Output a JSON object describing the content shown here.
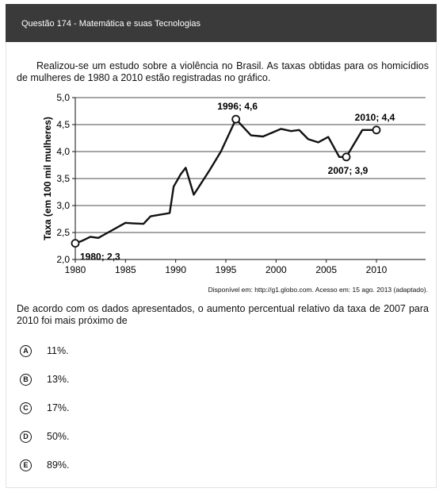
{
  "header": {
    "title": "Questão 174 - Matemática e suas Tecnologias"
  },
  "intro_text": "Realizou-se um estudo sobre a violência no Brasil. As taxas obtidas para os homicídios de mulheres de 1980 a 2010 estão registradas no gráfico.",
  "chart_data": {
    "type": "line",
    "ylabel": "Taxa (em 100 mil mulheres)",
    "xlabel": "",
    "xlim": [
      1980,
      2010
    ],
    "ylim": [
      2.0,
      5.0
    ],
    "x_ticks": [
      "1980",
      "1985",
      "1990",
      "1995",
      "2000",
      "2005",
      "2010"
    ],
    "y_ticks": [
      "2,0",
      "2,5",
      "3,0",
      "3,5",
      "4,0",
      "4,5",
      "5,0"
    ],
    "grid": "horizontal",
    "series": [
      {
        "x": [
          1980,
          1980.6,
          1981.5,
          1982.3,
          1985,
          1985.7,
          1986.8,
          1987.5,
          1989.4,
          1989.8,
          1990.5,
          1991,
          1991.8,
          1993.4,
          1994.5,
          1996,
          1997.5,
          1998.7,
          2000.5,
          2001.5,
          2002.3,
          2003.2,
          2004.2,
          2005.2,
          2006.3,
          2007,
          2008.6,
          2009.3,
          2010
        ],
        "y": [
          2.3,
          2.34,
          2.42,
          2.4,
          2.68,
          2.67,
          2.66,
          2.8,
          2.86,
          3.35,
          3.58,
          3.7,
          3.2,
          3.66,
          4.0,
          4.6,
          4.3,
          4.28,
          4.42,
          4.38,
          4.4,
          4.23,
          4.17,
          4.27,
          3.9,
          3.9,
          4.4,
          4.4,
          4.4
        ]
      }
    ],
    "annotations": [
      {
        "x": 1980,
        "y": 2.3,
        "label": "1980; 2,3"
      },
      {
        "x": 1996,
        "y": 4.6,
        "label": "1996; 4,6"
      },
      {
        "x": 2007,
        "y": 3.9,
        "label": "2007; 3,9"
      },
      {
        "x": 2010,
        "y": 4.4,
        "label": "2010; 4,4"
      }
    ]
  },
  "source_text": "Disponível em: http://g1.globo.com. Acesso em: 15 ago. 2013 (adaptado).",
  "question_text": "De acordo com os dados apresentados, o aumento percentual relativo da taxa de 2007 para 2010 foi mais próximo de",
  "options": [
    {
      "letter": "A",
      "text": "11%."
    },
    {
      "letter": "B",
      "text": "13%."
    },
    {
      "letter": "C",
      "text": "17%."
    },
    {
      "letter": "D",
      "text": "50%."
    },
    {
      "letter": "E",
      "text": "89%."
    }
  ]
}
